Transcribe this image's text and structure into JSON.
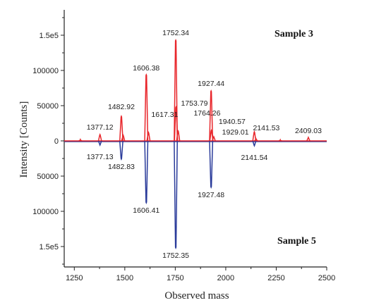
{
  "chart_data": {
    "type": "line",
    "subtype": "mirror mass spectrum",
    "xlabel": "Observed mass",
    "ylabel": "Intensity [Counts]",
    "xlim": [
      1200,
      2500
    ],
    "x_ticks": [
      1250,
      1500,
      1750,
      2000,
      2250,
      2500
    ],
    "x_tick_labels": [
      "1250",
      "1500",
      "1750",
      "2000",
      "2250",
      "2500"
    ],
    "top_ylim": [
      0,
      185000
    ],
    "bottom_ylim": [
      0,
      185000
    ],
    "y_ticks": [
      {
        "value": 150000,
        "label": "1.5e5",
        "panel": "top"
      },
      {
        "value": 100000,
        "label": "100000",
        "panel": "top"
      },
      {
        "value": 50000,
        "label": "50000",
        "panel": "top"
      },
      {
        "value": 0,
        "label": "0",
        "panel": "zero"
      },
      {
        "value": 50000,
        "label": "50000",
        "panel": "bottom"
      },
      {
        "value": 100000,
        "label": "100000",
        "panel": "bottom"
      },
      {
        "value": 150000,
        "label": "1.5e5",
        "panel": "bottom"
      }
    ],
    "grid": false,
    "series": [
      {
        "name": "Sample 3",
        "color": "#e8262b",
        "direction": "up",
        "peaks": [
          {
            "x": 1280,
            "y": 2000
          },
          {
            "x": 1377.12,
            "y": 9000,
            "label": "1377.12"
          },
          {
            "x": 1482.92,
            "y": 35000,
            "label": "1482.92"
          },
          {
            "x": 1492,
            "y": 8000
          },
          {
            "x": 1606.38,
            "y": 94000,
            "label": "1606.38"
          },
          {
            "x": 1617.31,
            "y": 12000,
            "label": "1617.31"
          },
          {
            "x": 1752.34,
            "y": 143000,
            "label": "1752.34"
          },
          {
            "x": 1753.79,
            "y": 48000,
            "label": "1753.79"
          },
          {
            "x": 1764.26,
            "y": 14000,
            "label": "1764.26"
          },
          {
            "x": 1927.44,
            "y": 71000,
            "label": "1927.44"
          },
          {
            "x": 1929.01,
            "y": 15000,
            "label": "1929.01"
          },
          {
            "x": 1940.57,
            "y": 6000,
            "label": "1940.57"
          },
          {
            "x": 2141.53,
            "y": 13000,
            "label": "2141.53"
          },
          {
            "x": 2150,
            "y": 3000
          },
          {
            "x": 2270,
            "y": 1500
          },
          {
            "x": 2409.03,
            "y": 5000,
            "label": "2409.03"
          }
        ]
      },
      {
        "name": "Sample 5",
        "color": "#2a3b9a",
        "direction": "down",
        "peaks": [
          {
            "x": 1377.13,
            "y": 6000,
            "label": "1377.13"
          },
          {
            "x": 1482.83,
            "y": 26000,
            "label": "1482.83"
          },
          {
            "x": 1606.41,
            "y": 88000,
            "label": "1606.41"
          },
          {
            "x": 1752.35,
            "y": 152000,
            "label": "1752.35"
          },
          {
            "x": 1927.48,
            "y": 66000,
            "label": "1927.48"
          },
          {
            "x": 2141.54,
            "y": 7000,
            "label": "2141.54"
          }
        ]
      }
    ]
  }
}
